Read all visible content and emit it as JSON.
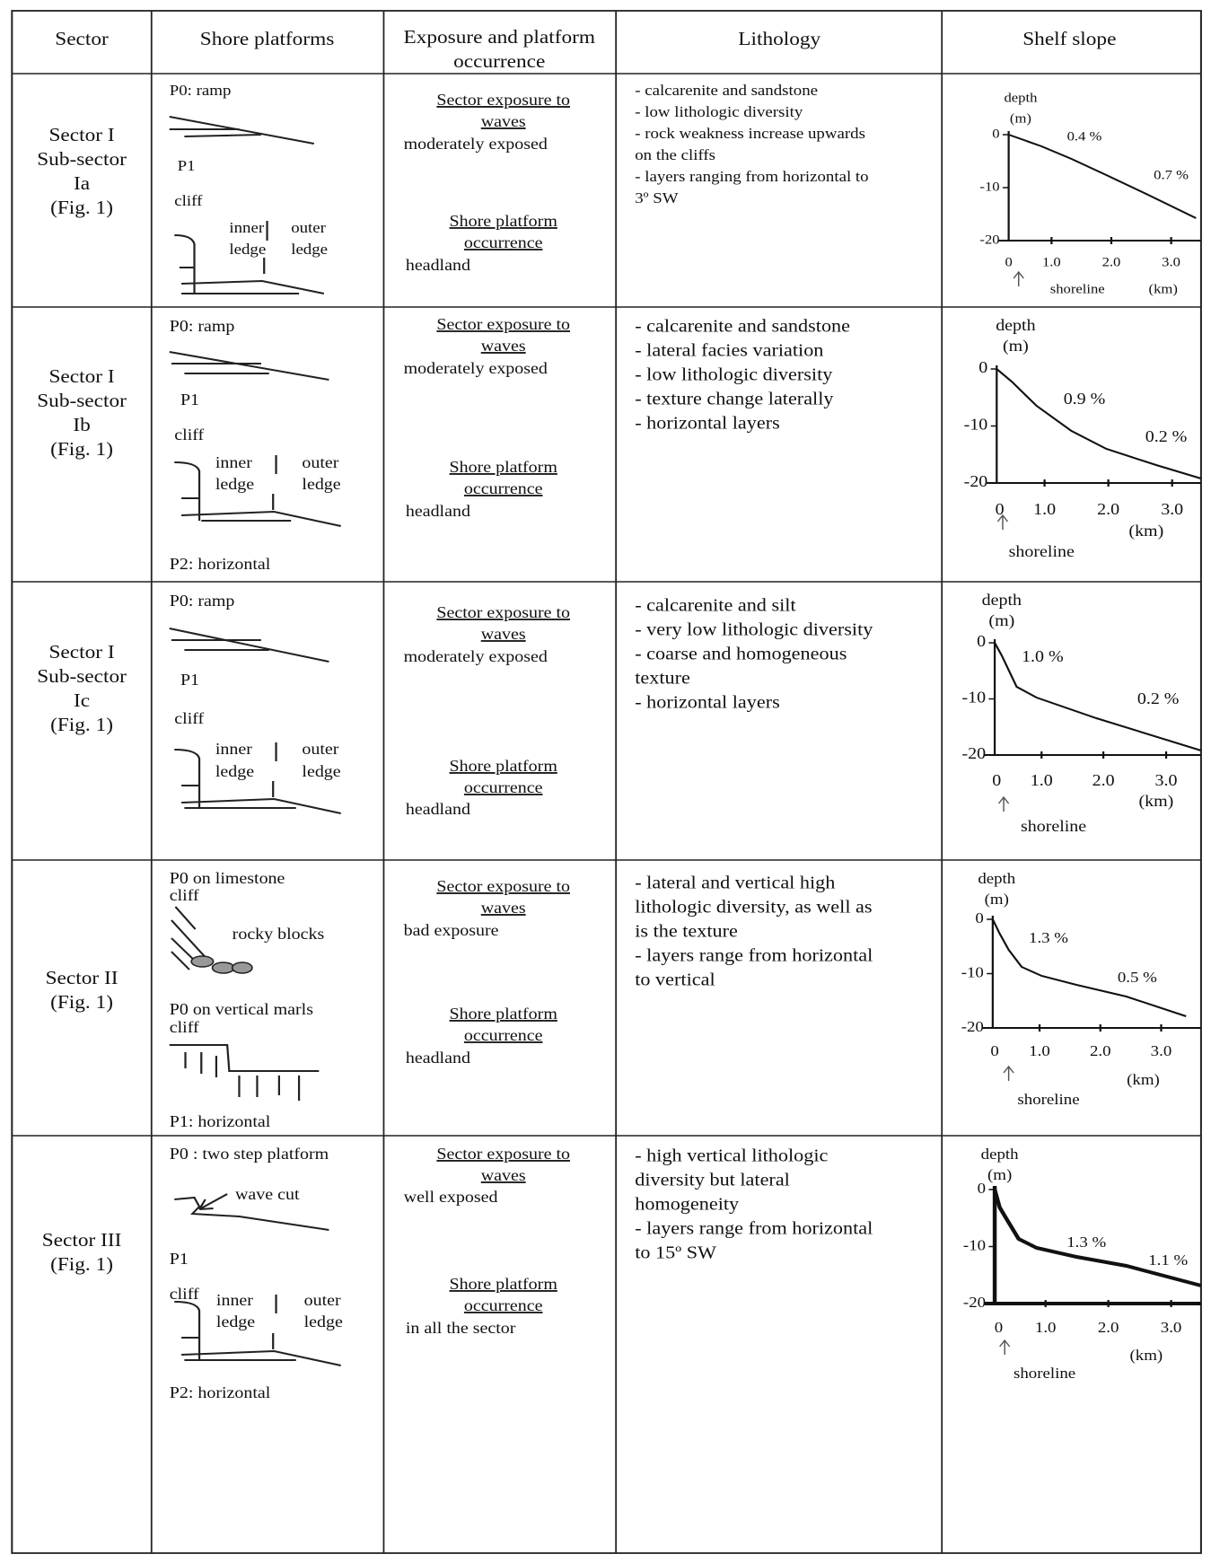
{
  "header": {
    "sector": [
      "Sector"
    ],
    "platforms": [
      "Shore  platforms"
    ],
    "exposure": [
      "Exposure and platform",
      "occurrence"
    ],
    "lithology": [
      "Lithology"
    ],
    "slope": [
      "Shelf slope"
    ]
  },
  "rows": [
    {
      "sector": [
        "Sector I",
        "Sub-sector",
        "Ia",
        "(Fig. 1)"
      ],
      "platforms": [
        "P0: ramp",
        "P1",
        "cliff",
        "inner",
        "ledge",
        "outer",
        "ledge"
      ],
      "exposure": {
        "waves": [
          "Sector exposure to",
          "waves"
        ],
        "exposure": "moderately exposed",
        "platform": [
          "Shore platform",
          "occurrence"
        ],
        "occurrence": "headland"
      },
      "lithology": [
        "- calcarenite and sandstone",
        "- low lithologic diversity",
        "- rock weakness increase upwards",
        "on the cliffs",
        "- layers ranging from horizontal to",
        "3º SW"
      ],
      "slope": {
        "axis_title": [
          "depth",
          "(m)"
        ],
        "yticks": [
          "0",
          "-10",
          "-20"
        ],
        "xticks": [
          "0",
          "1.0",
          "2.0",
          "3.0"
        ],
        "x_title": "(km)",
        "marker": "shoreline",
        "gradients": [
          "0.4 %",
          "0.7 %"
        ]
      }
    },
    {
      "sector": [
        "Sector I",
        "Sub-sector",
        "Ib",
        "(Fig. 1)"
      ],
      "platforms": [
        "P0: ramp",
        "P1",
        "cliff",
        "inner",
        "ledge",
        "outer",
        "ledge",
        "P2: horizontal"
      ],
      "exposure": {
        "waves": [
          "Sector exposure to",
          "waves"
        ],
        "exposure": "moderately exposed",
        "platform": [
          "Shore platform",
          "occurrence"
        ],
        "occurrence": "headland"
      },
      "lithology": [
        "- calcarenite and sandstone",
        "- lateral facies variation",
        "- low lithologic diversity",
        "- texture change laterally",
        "- horizontal layers"
      ],
      "slope": {
        "axis_title": [
          "depth",
          "(m)"
        ],
        "yticks": [
          "0",
          "-10",
          "-20"
        ],
        "xticks": [
          "0",
          "1.0",
          "2.0",
          "3.0"
        ],
        "x_title": "(km)",
        "marker": "shoreline",
        "gradients": [
          "0.9 %",
          "0.2 %"
        ]
      }
    },
    {
      "sector": [
        "Sector I",
        "Sub-sector",
        "Ic",
        "(Fig. 1)"
      ],
      "platforms": [
        "P0: ramp",
        "P1",
        "cliff",
        "inner",
        "ledge",
        "outer",
        "ledge"
      ],
      "exposure": {
        "waves": [
          "Sector exposure to",
          "waves"
        ],
        "exposure": "moderately exposed",
        "platform": [
          "Shore platform",
          "occurrence"
        ],
        "occurrence": "headland"
      },
      "lithology": [
        "- calcarenite and silt",
        "- very low lithologic diversity",
        "- coarse and homogeneous",
        "texture",
        "- horizontal layers"
      ],
      "slope": {
        "axis_title": [
          "depth",
          "(m)"
        ],
        "yticks": [
          "0",
          "-10",
          "-20"
        ],
        "xticks": [
          "0",
          "1.0",
          "2.0",
          "3.0"
        ],
        "x_title": "(km)",
        "marker": "shoreline",
        "gradients": [
          "1.0 %",
          "0.2 %"
        ]
      }
    },
    {
      "sector": [
        "Sector II",
        "(Fig. 1)"
      ],
      "platforms": [
        "P0 on limestone",
        "cliff",
        "rocky blocks",
        "P0 on vertical marls",
        "cliff",
        "P1: horizontal"
      ],
      "exposure": {
        "waves": [
          "Sector exposure to",
          "waves"
        ],
        "exposure": "bad exposure",
        "platform": [
          "Shore platform",
          "occurrence"
        ],
        "occurrence": "headland"
      },
      "lithology": [
        "- lateral and vertical high",
        "lithologic diversity, as well as",
        "is the texture",
        "- layers range from horizontal",
        "to vertical"
      ],
      "slope": {
        "axis_title": [
          "depth",
          "(m)"
        ],
        "yticks": [
          "0",
          "-10",
          "-20"
        ],
        "xticks": [
          "0",
          "1.0",
          "2.0",
          "3.0"
        ],
        "x_title": "(km)",
        "marker": "shoreline",
        "gradients": [
          "1.3 %",
          "0.5 %"
        ]
      }
    },
    {
      "sector": [
        "Sector III",
        "(Fig. 1)"
      ],
      "platforms": [
        "P0 : two step platform",
        "wave cut",
        "P1",
        "cliff",
        "inner",
        "ledge",
        "outer",
        "ledge",
        "P2: horizontal"
      ],
      "exposure": {
        "waves": [
          "Sector exposure to",
          "waves"
        ],
        "exposure": "well exposed",
        "platform": [
          "Shore platform",
          "occurrence"
        ],
        "occurrence": "in all the sector"
      },
      "lithology": [
        "- high vertical lithologic",
        "diversity but lateral",
        "homogeneity",
        "- layers range from horizontal",
        "to 15º SW"
      ],
      "slope": {
        "axis_title": [
          "depth",
          "(m)"
        ],
        "yticks": [
          "0",
          "-10",
          "-20"
        ],
        "xticks": [
          "0",
          "1.0",
          "2.0",
          "3.0"
        ],
        "x_title": "(km)",
        "marker": "shoreline",
        "gradients": [
          "1.3 %",
          "1.1 %"
        ]
      }
    }
  ]
}
